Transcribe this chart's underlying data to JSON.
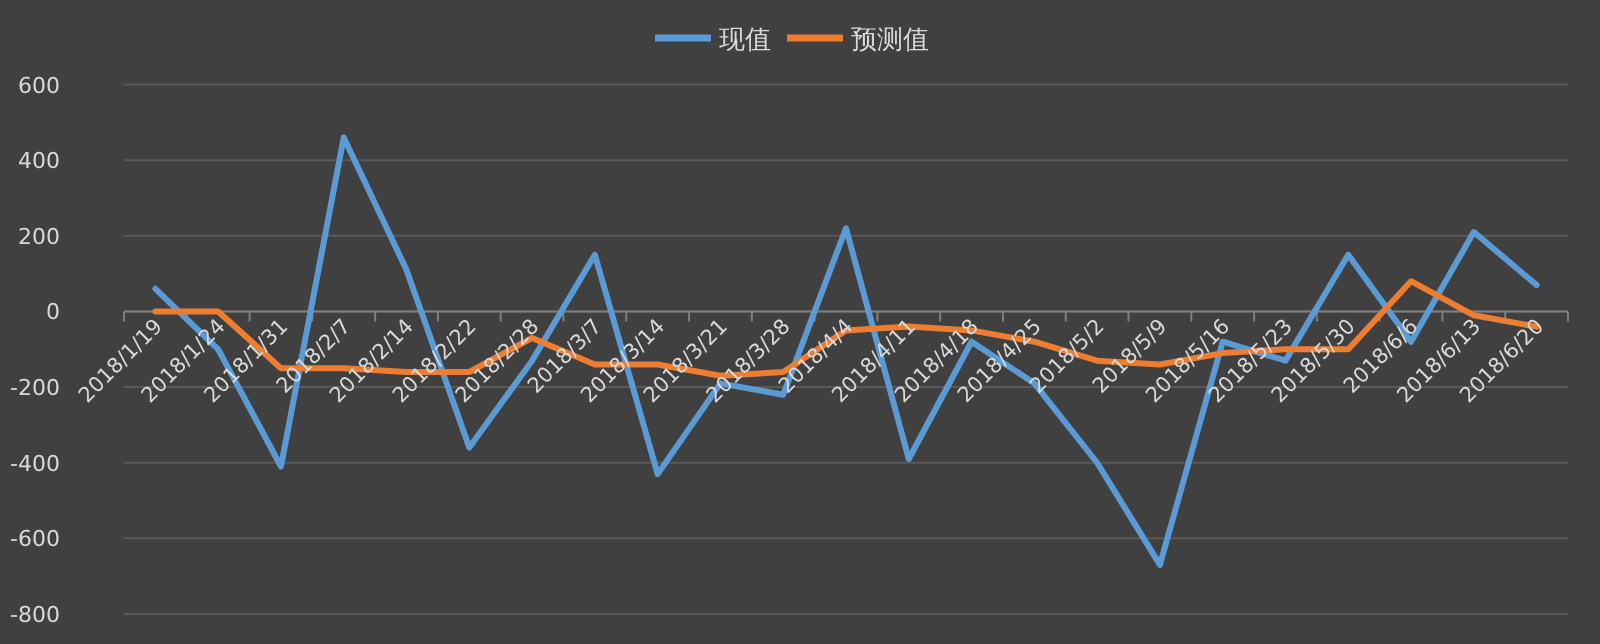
{
  "chart_data": {
    "type": "line",
    "categories": [
      "2018/1/19",
      "2018/1/24",
      "2018/1/31",
      "2018/2/7",
      "2018/2/14",
      "2018/2/22",
      "2018/2/28",
      "2018/3/7",
      "2018/3/14",
      "2018/3/21",
      "2018/3/28",
      "2018/4/4",
      "2018/4/11",
      "2018/4/18",
      "2018/4/25",
      "2018/5/2",
      "2018/5/9",
      "2018/5/16",
      "2018/5/23",
      "2018/5/30",
      "2018/6/6",
      "2018/6/13",
      "2018/6/20"
    ],
    "series": [
      {
        "name": "现值",
        "color": "#5b9bd5",
        "values": [
          60,
          -100,
          -410,
          460,
          110,
          -360,
          -130,
          150,
          -430,
          -190,
          -220,
          220,
          -390,
          -80,
          -190,
          -400,
          -670,
          -80,
          -130,
          150,
          -80,
          210,
          70
        ]
      },
      {
        "name": "预测值",
        "color": "#ed7d31",
        "values": [
          0,
          0,
          -150,
          -150,
          -160,
          -160,
          -70,
          -140,
          -140,
          -170,
          -160,
          -50,
          -40,
          -50,
          -80,
          -130,
          -140,
          -110,
          -100,
          -100,
          80,
          -10,
          -40
        ]
      }
    ],
    "ylim": [
      -800,
      600
    ],
    "yticks": [
      -800,
      -600,
      -400,
      -200,
      0,
      200,
      400,
      600
    ],
    "grid": "y",
    "legend": "top"
  }
}
